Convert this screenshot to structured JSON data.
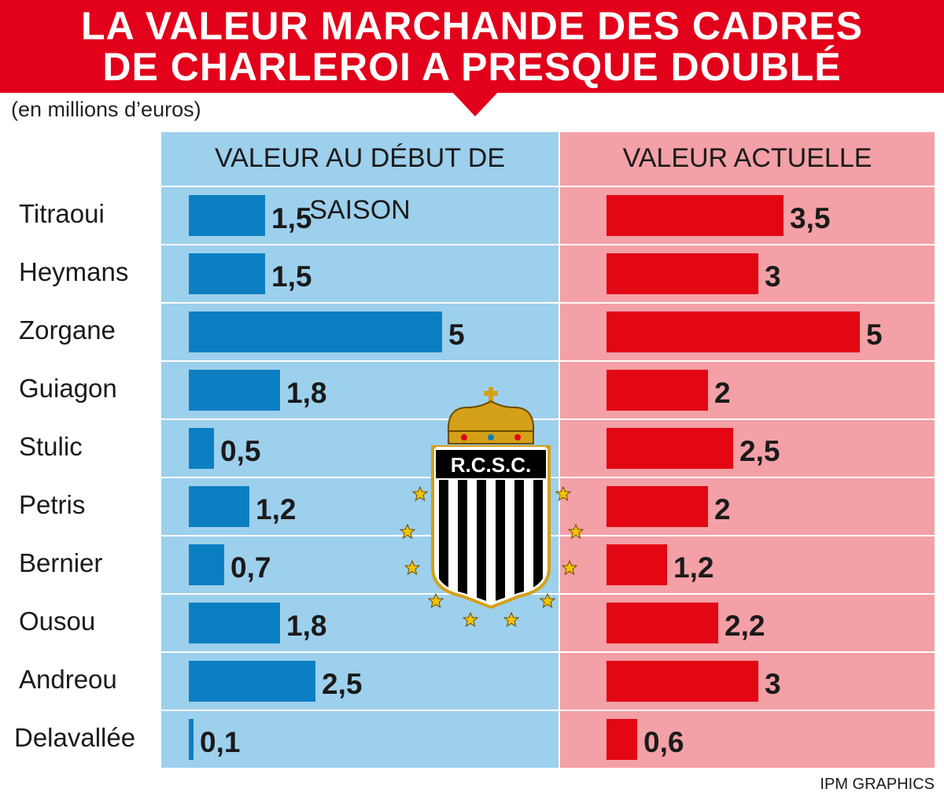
{
  "title_line1": "LA VALEUR MARCHANDE DES CADRES",
  "title_line2": "DE CHARLEROI A PRESQUE DOUBLÉ",
  "unit_note": "(en millions d’euros)",
  "source": "IPM GRAPHICS",
  "logo_text": "R.C.S.C.",
  "colors": {
    "banner": "#e2001a",
    "panel_start": "#9dd0ec",
    "panel_current": "#f3a0a6",
    "bar_start": "#0c7fc2",
    "bar_current": "#e30613"
  },
  "chart_data": {
    "type": "bar",
    "orientation": "horizontal",
    "title": "LA VALEUR MARCHANDE DES CADRES DE CHARLEROI A PRESQUE DOUBLÉ",
    "subtitle": "(en millions d’euros)",
    "categories": [
      "Titraoui",
      "Heymans",
      "Zorgane",
      "Guiagon",
      "Stulic",
      "Petris",
      "Bernier",
      "Ousou",
      "Andreou",
      "Delavallée"
    ],
    "series": [
      {
        "name": "VALEUR AU DÉBUT DE SAISON",
        "values": [
          1.5,
          1.5,
          5,
          1.8,
          0.5,
          1.2,
          0.7,
          1.8,
          2.5,
          0.1
        ],
        "labels": [
          "1,5",
          "1,5",
          "5",
          "1,8",
          "0,5",
          "1,2",
          "0,7",
          "1,8",
          "2,5",
          "0,1"
        ]
      },
      {
        "name": "VALEUR ACTUELLE",
        "values": [
          3.5,
          3,
          5,
          2,
          2.5,
          2,
          1.2,
          2.2,
          3,
          0.6
        ],
        "labels": [
          "3,5",
          "3",
          "5",
          "2",
          "2,5",
          "2",
          "1,2",
          "2,2",
          "3",
          "0,6"
        ]
      }
    ],
    "xlim": [
      0,
      5
    ],
    "grid": false,
    "legend": "column-headers"
  }
}
